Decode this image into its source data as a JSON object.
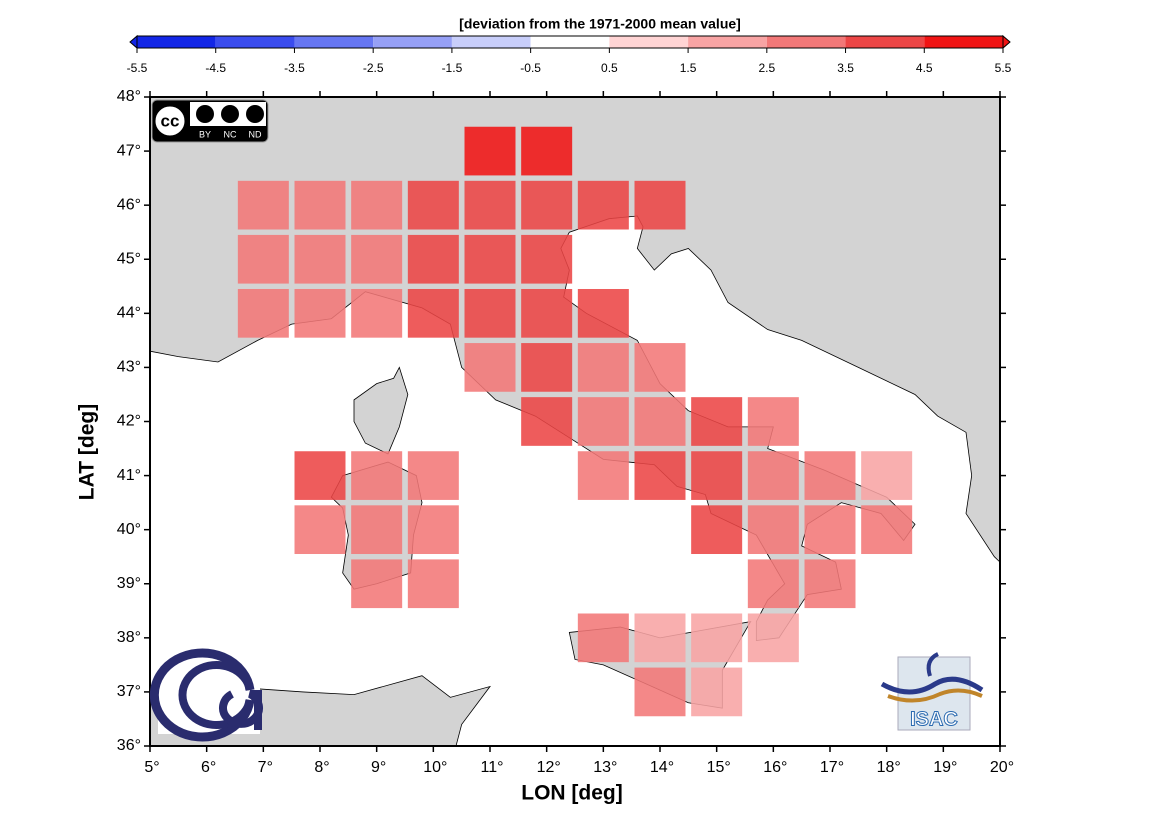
{
  "chart_data": {
    "type": "grid-map",
    "colorbar": {
      "title": "[deviation from the 1971-2000 mean value]",
      "ticks": [
        -5.5,
        -4.5,
        -3.5,
        -2.5,
        -1.5,
        -0.5,
        0.5,
        1.5,
        2.5,
        3.5,
        4.5,
        5.5
      ],
      "colors": [
        "#1226e6",
        "#3a4cee",
        "#6676f2",
        "#96a0f6",
        "#c8cefa",
        "#ffffff",
        "#ffd4d4",
        "#f8a4a4",
        "#f27878",
        "#ec4646",
        "#f01414"
      ]
    },
    "xlabel": "LON [deg]",
    "ylabel": "LAT [deg]",
    "xlim": [
      5,
      20
    ],
    "ylim": [
      36,
      48
    ],
    "xticks": [
      {
        "value": 5,
        "label": "5°"
      },
      {
        "value": 6,
        "label": "6°"
      },
      {
        "value": 7,
        "label": "7°"
      },
      {
        "value": 8,
        "label": "8°"
      },
      {
        "value": 9,
        "label": "9°"
      },
      {
        "value": 10,
        "label": "10°"
      },
      {
        "value": 11,
        "label": "11°"
      },
      {
        "value": 12,
        "label": "12°"
      },
      {
        "value": 13,
        "label": "13°"
      },
      {
        "value": 14,
        "label": "14°"
      },
      {
        "value": 15,
        "label": "15°"
      },
      {
        "value": 16,
        "label": "16°"
      },
      {
        "value": 17,
        "label": "17°"
      },
      {
        "value": 18,
        "label": "18°"
      },
      {
        "value": 19,
        "label": "19°"
      },
      {
        "value": 20,
        "label": "20°"
      }
    ],
    "yticks": [
      {
        "value": 36,
        "label": "36°"
      },
      {
        "value": 37,
        "label": "37°"
      },
      {
        "value": 38,
        "label": "38°"
      },
      {
        "value": 39,
        "label": "39°"
      },
      {
        "value": 40,
        "label": "40°"
      },
      {
        "value": 41,
        "label": "41°"
      },
      {
        "value": 42,
        "label": "42°"
      },
      {
        "value": 43,
        "label": "43°"
      },
      {
        "value": 44,
        "label": "44°"
      },
      {
        "value": 45,
        "label": "45°"
      },
      {
        "value": 46,
        "label": "46°"
      },
      {
        "value": 47,
        "label": "47°"
      },
      {
        "value": 48,
        "label": "48°"
      }
    ],
    "land_color": "#d3d3d3",
    "cells": [
      {
        "lon": 11,
        "lat": 47,
        "value": 5.0
      },
      {
        "lon": 12,
        "lat": 47,
        "value": 4.8
      },
      {
        "lon": 7,
        "lat": 46,
        "value": 3.0
      },
      {
        "lon": 8,
        "lat": 46,
        "value": 3.0
      },
      {
        "lon": 9,
        "lat": 46,
        "value": 3.0
      },
      {
        "lon": 10,
        "lat": 46,
        "value": 3.8
      },
      {
        "lon": 11,
        "lat": 46,
        "value": 3.8
      },
      {
        "lon": 12,
        "lat": 46,
        "value": 3.7
      },
      {
        "lon": 13,
        "lat": 46,
        "value": 3.6
      },
      {
        "lon": 14,
        "lat": 46,
        "value": 3.8
      },
      {
        "lon": 7,
        "lat": 45,
        "value": 3.0
      },
      {
        "lon": 8,
        "lat": 45,
        "value": 3.0
      },
      {
        "lon": 9,
        "lat": 45,
        "value": 3.0
      },
      {
        "lon": 10,
        "lat": 45,
        "value": 3.7
      },
      {
        "lon": 11,
        "lat": 45,
        "value": 3.7
      },
      {
        "lon": 12,
        "lat": 45,
        "value": 3.7
      },
      {
        "lon": 7,
        "lat": 44,
        "value": 2.9
      },
      {
        "lon": 8,
        "lat": 44,
        "value": 3.0
      },
      {
        "lon": 9,
        "lat": 44,
        "value": 3.0
      },
      {
        "lon": 10,
        "lat": 44,
        "value": 3.7
      },
      {
        "lon": 11,
        "lat": 44,
        "value": 3.6
      },
      {
        "lon": 12,
        "lat": 44,
        "value": 3.7
      },
      {
        "lon": 13,
        "lat": 44,
        "value": 3.6
      },
      {
        "lon": 11,
        "lat": 43,
        "value": 3.2
      },
      {
        "lon": 12,
        "lat": 43,
        "value": 3.6
      },
      {
        "lon": 13,
        "lat": 43,
        "value": 3.2
      },
      {
        "lon": 14,
        "lat": 43,
        "value": 3.1
      },
      {
        "lon": 12,
        "lat": 42,
        "value": 3.5
      },
      {
        "lon": 13,
        "lat": 42,
        "value": 3.1
      },
      {
        "lon": 14,
        "lat": 42,
        "value": 3.1
      },
      {
        "lon": 15,
        "lat": 42,
        "value": 3.8
      },
      {
        "lon": 16,
        "lat": 42,
        "value": 2.9
      },
      {
        "lon": 8,
        "lat": 41,
        "value": 3.8
      },
      {
        "lon": 9,
        "lat": 41,
        "value": 3.0
      },
      {
        "lon": 10,
        "lat": 41,
        "value": 3.0
      },
      {
        "lon": 13,
        "lat": 41,
        "value": 2.9
      },
      {
        "lon": 14,
        "lat": 41,
        "value": 3.6
      },
      {
        "lon": 15,
        "lat": 41,
        "value": 3.6
      },
      {
        "lon": 16,
        "lat": 41,
        "value": 3.1
      },
      {
        "lon": 17,
        "lat": 41,
        "value": 3.0
      },
      {
        "lon": 18,
        "lat": 41,
        "value": 2.2
      },
      {
        "lon": 8,
        "lat": 40,
        "value": 2.9
      },
      {
        "lon": 9,
        "lat": 40,
        "value": 3.0
      },
      {
        "lon": 10,
        "lat": 40,
        "value": 3.0
      },
      {
        "lon": 15,
        "lat": 40,
        "value": 3.6
      },
      {
        "lon": 16,
        "lat": 40,
        "value": 3.0
      },
      {
        "lon": 17,
        "lat": 40,
        "value": 3.0
      },
      {
        "lon": 18,
        "lat": 40,
        "value": 3.1
      },
      {
        "lon": 9,
        "lat": 39,
        "value": 2.9
      },
      {
        "lon": 10,
        "lat": 39,
        "value": 2.9
      },
      {
        "lon": 16,
        "lat": 39,
        "value": 3.0
      },
      {
        "lon": 17,
        "lat": 39,
        "value": 3.0
      },
      {
        "lon": 13,
        "lat": 38,
        "value": 3.0
      },
      {
        "lon": 14,
        "lat": 38,
        "value": 2.3
      },
      {
        "lon": 15,
        "lat": 38,
        "value": 2.3
      },
      {
        "lon": 16,
        "lat": 38,
        "value": 2.4
      },
      {
        "lon": 14,
        "lat": 37,
        "value": 3.1
      },
      {
        "lon": 15,
        "lat": 37,
        "value": 2.3
      }
    ],
    "logos": {
      "cc": "cc",
      "licence": [
        "BY",
        "NC",
        "ND"
      ],
      "institute": "ISAC"
    }
  }
}
